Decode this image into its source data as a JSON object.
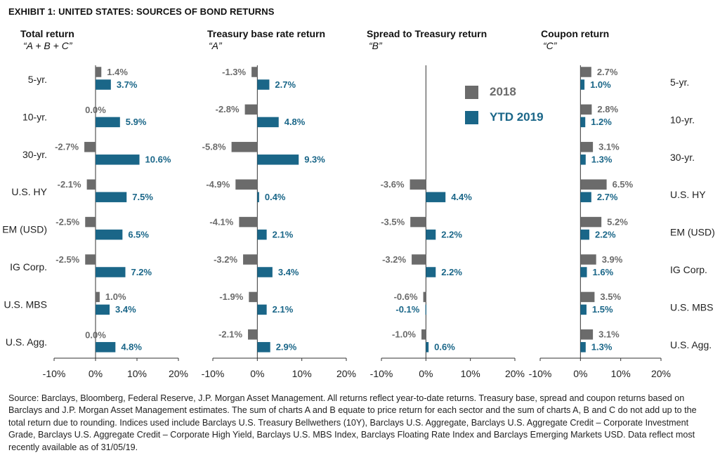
{
  "exhibit_title": "EXHIBIT 1: UNITED STATES: SOURCES OF BOND RETURNS",
  "legend": [
    {
      "label": "2018",
      "color": "#6b6b6b"
    },
    {
      "label": "YTD 2019",
      "color": "#1a6688"
    }
  ],
  "colors": {
    "series_2018": "#6b6b6b",
    "series_2019": "#1a6688",
    "label_2018": "#6b6b6b",
    "label_2019": "#1a6688"
  },
  "chart_data": [
    {
      "type": "bar",
      "orientation": "horizontal",
      "title": "Total return",
      "subtitle": "“A + B + C”",
      "categories": [
        "5-yr.",
        "10-yr.",
        "30-yr.",
        "U.S. HY",
        "EM (USD)",
        "IG Corp.",
        "U.S. MBS",
        "U.S. Agg."
      ],
      "series": [
        {
          "name": "2018",
          "values": [
            1.4,
            0.0,
            -2.7,
            -2.1,
            -2.5,
            -2.5,
            1.0,
            0.0
          ],
          "labels": [
            "1.4%",
            "0.0%",
            "-2.7%",
            "-2.1%",
            "-2.5%",
            "-2.5%",
            "1.0%",
            "0.0%"
          ]
        },
        {
          "name": "YTD 2019",
          "values": [
            3.7,
            5.9,
            10.6,
            7.5,
            6.5,
            7.2,
            3.4,
            4.8
          ],
          "labels": [
            "3.7%",
            "5.9%",
            "10.6%",
            "7.5%",
            "6.5%",
            "7.2%",
            "3.4%",
            "4.8%"
          ]
        }
      ],
      "xlim": [
        -10,
        20
      ],
      "xticks": [
        "-10%",
        "0%",
        "10%",
        "20%"
      ]
    },
    {
      "type": "bar",
      "orientation": "horizontal",
      "title": "Treasury base rate return",
      "subtitle": "“A”",
      "categories": [
        "5-yr.",
        "10-yr.",
        "30-yr.",
        "U.S. HY",
        "EM (USD)",
        "IG Corp.",
        "U.S. MBS",
        "U.S. Agg."
      ],
      "series": [
        {
          "name": "2018",
          "values": [
            -1.3,
            -2.8,
            -5.8,
            -4.9,
            -4.1,
            -3.2,
            -1.9,
            -2.1
          ],
          "labels": [
            "-1.3%",
            "-2.8%",
            "-5.8%",
            "-4.9%",
            "-4.1%",
            "-3.2%",
            "-1.9%",
            "-2.1%"
          ]
        },
        {
          "name": "YTD 2019",
          "values": [
            2.7,
            4.8,
            9.3,
            0.4,
            2.1,
            3.4,
            2.1,
            2.9
          ],
          "labels": [
            "2.7%",
            "4.8%",
            "9.3%",
            "0.4%",
            "2.1%",
            "3.4%",
            "2.1%",
            "2.9%"
          ]
        }
      ],
      "xlim": [
        -10,
        20
      ],
      "xticks": [
        "-10%",
        "0%",
        "10%",
        "20%"
      ]
    },
    {
      "type": "bar",
      "orientation": "horizontal",
      "title": "Spread to Treasury return",
      "subtitle": "“B”",
      "categories": [
        "5-yr.",
        "10-yr.",
        "30-yr.",
        "U.S. HY",
        "EM (USD)",
        "IG Corp.",
        "U.S. MBS",
        "U.S. Agg."
      ],
      "series": [
        {
          "name": "2018",
          "values": [
            null,
            null,
            null,
            -3.6,
            -3.5,
            -3.2,
            -0.6,
            -1.0
          ],
          "labels": [
            "",
            "",
            "",
            "-3.6%",
            "-3.5%",
            "-3.2%",
            "-0.6%",
            "-1.0%"
          ]
        },
        {
          "name": "YTD 2019",
          "values": [
            null,
            null,
            null,
            4.4,
            2.2,
            2.2,
            -0.1,
            0.6
          ],
          "labels": [
            "",
            "",
            "",
            "4.4%",
            "2.2%",
            "2.2%",
            "-0.1%",
            "0.6%"
          ]
        }
      ],
      "xlim": [
        -10,
        20
      ],
      "xticks": [
        "-10%",
        "0%",
        "10%",
        "20%"
      ]
    },
    {
      "type": "bar",
      "orientation": "horizontal",
      "title": "Coupon return",
      "subtitle": "“C”",
      "categories": [
        "5-yr.",
        "10-yr.",
        "30-yr.",
        "U.S. HY",
        "EM (USD)",
        "IG Corp.",
        "U.S. MBS",
        "U.S. Agg."
      ],
      "series": [
        {
          "name": "2018",
          "values": [
            2.7,
            2.8,
            3.1,
            6.5,
            5.2,
            3.9,
            3.5,
            3.1
          ],
          "labels": [
            "2.7%",
            "2.8%",
            "3.1%",
            "6.5%",
            "5.2%",
            "3.9%",
            "3.5%",
            "3.1%"
          ]
        },
        {
          "name": "YTD 2019",
          "values": [
            1.0,
            1.2,
            1.3,
            2.7,
            2.2,
            1.6,
            1.5,
            1.3
          ],
          "labels": [
            "1.0%",
            "1.2%",
            "1.3%",
            "2.7%",
            "2.2%",
            "1.6%",
            "1.5%",
            "1.3%"
          ]
        }
      ],
      "xlim": [
        -10,
        20
      ],
      "xticks": [
        "-10%",
        "0%",
        "10%",
        "20%"
      ]
    }
  ],
  "source_note": "Source: Barclays, Bloomberg, Federal Reserve, J.P. Morgan Asset Management. All returns reflect year-to-date returns. Treasury base, spread and coupon returns based on Barclays and J.P. Morgan Asset Management estimates. The sum of charts A and B equate to price return for each sector and the sum of charts A, B and C do not add up to the total return due to rounding. Indices used include Barclays U.S. Treasury Bellwethers (10Y), Barclays U.S. Aggregate, Barclays U.S. Aggregate Credit – Corporate Investment Grade, Barclays U.S. Aggregate Credit – Corporate High Yield, Barclays U.S. MBS Index, Barclays Floating Rate Index and Barclays Emerging Markets USD. Data reflect most recently available as of 31/05/19."
}
